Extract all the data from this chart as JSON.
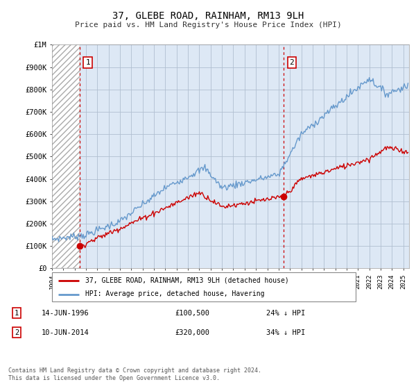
{
  "title": "37, GLEBE ROAD, RAINHAM, RM13 9LH",
  "subtitle": "Price paid vs. HM Land Registry's House Price Index (HPI)",
  "ylabel_ticks": [
    "£0",
    "£100K",
    "£200K",
    "£300K",
    "£400K",
    "£500K",
    "£600K",
    "£700K",
    "£800K",
    "£900K",
    "£1M"
  ],
  "ytick_values": [
    0,
    100000,
    200000,
    300000,
    400000,
    500000,
    600000,
    700000,
    800000,
    900000,
    1000000
  ],
  "ylim": [
    0,
    1000000
  ],
  "xlim_start": 1994.0,
  "xlim_end": 2025.5,
  "purchase1_x": 1996.45,
  "purchase1_y": 100500,
  "purchase1_label": "14-JUN-1996",
  "purchase1_price": "£100,500",
  "purchase1_hpi": "24% ↓ HPI",
  "purchase2_x": 2014.45,
  "purchase2_y": 320000,
  "purchase2_label": "10-JUN-2014",
  "purchase2_price": "£320,000",
  "purchase2_hpi": "34% ↓ HPI",
  "legend1": "37, GLEBE ROAD, RAINHAM, RM13 9LH (detached house)",
  "legend2": "HPI: Average price, detached house, Havering",
  "footnote": "Contains HM Land Registry data © Crown copyright and database right 2024.\nThis data is licensed under the Open Government Licence v3.0.",
  "red_color": "#cc0000",
  "blue_color": "#6699cc",
  "bg_color": "#ffffff",
  "plot_bg": "#dde8f5",
  "grid_color": "#b0bfd0"
}
